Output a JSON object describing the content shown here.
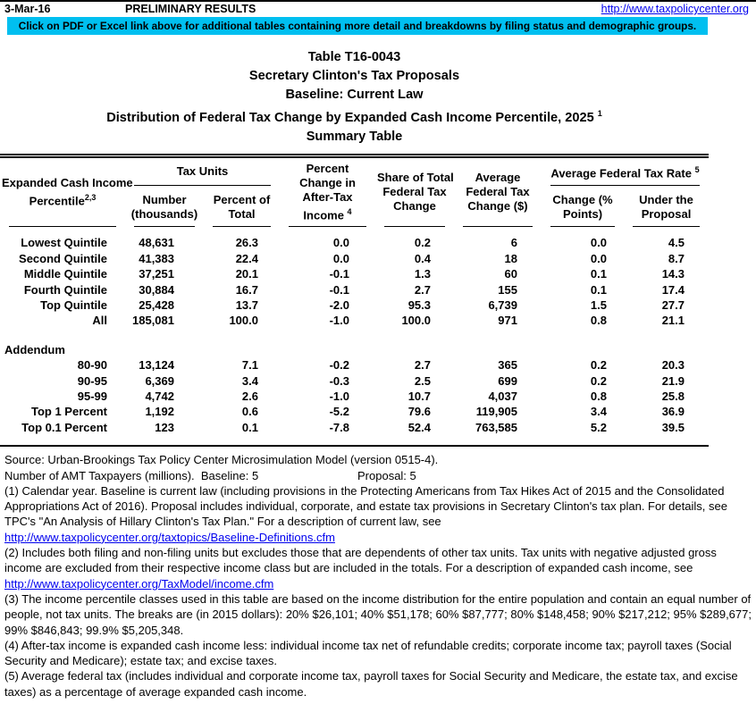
{
  "page": {
    "date": "3-Mar-16",
    "status": "PRELIMINARY RESULTS",
    "site_url": "http://www.taxpolicycenter.org",
    "banner": "Click on PDF or Excel link above for additional tables containing more detail and breakdowns by filing status and demographic groups."
  },
  "title": {
    "line1": "Table T16-0043",
    "line2": "Secretary Clinton's Tax Proposals",
    "line3": "Baseline: Current Law",
    "line4": "Distribution of Federal Tax Change by Expanded Cash Income Percentile, 2025 ",
    "line4_sup": "1",
    "line5": "Summary Table"
  },
  "table": {
    "header": {
      "col1": "Expanded Cash Income\nPercentile",
      "col1_sup": "2,3",
      "group_tax_units": "Tax Units",
      "col2": "Number\n(thousands)",
      "col3": "Percent of\nTotal",
      "col4": "Percent\nChange in\nAfter-Tax\nIncome ",
      "col4_sup": "4",
      "col5": "Share of Total\nFederal Tax\nChange",
      "col6": "Average\nFederal Tax\nChange ($)",
      "group_avg_rate": "Average Federal Tax Rate ",
      "group_avg_rate_sup": "5",
      "col7": "Change (%\nPoints)",
      "col8": "Under the\nProposal"
    },
    "rows": [
      {
        "label": "Lowest Quintile",
        "values": [
          "48,631",
          "26.3",
          "0.0",
          "0.2",
          "6",
          "0.0",
          "4.5"
        ]
      },
      {
        "label": "Second Quintile",
        "values": [
          "41,383",
          "22.4",
          "0.0",
          "0.4",
          "18",
          "0.0",
          "8.7"
        ]
      },
      {
        "label": "Middle Quintile",
        "values": [
          "37,251",
          "20.1",
          "-0.1",
          "1.3",
          "60",
          "0.1",
          "14.3"
        ]
      },
      {
        "label": "Fourth Quintile",
        "values": [
          "30,884",
          "16.7",
          "-0.1",
          "2.7",
          "155",
          "0.1",
          "17.4"
        ]
      },
      {
        "label": "Top Quintile",
        "values": [
          "25,428",
          "13.7",
          "-2.0",
          "95.3",
          "6,739",
          "1.5",
          "27.7"
        ]
      },
      {
        "label": "All",
        "values": [
          "185,081",
          "100.0",
          "-1.0",
          "100.0",
          "971",
          "0.8",
          "21.1"
        ]
      }
    ],
    "addendum_label": "Addendum",
    "addendum_rows": [
      {
        "label": "80-90",
        "values": [
          "13,124",
          "7.1",
          "-0.2",
          "2.7",
          "365",
          "0.2",
          "20.3"
        ]
      },
      {
        "label": "90-95",
        "values": [
          "6,369",
          "3.4",
          "-0.3",
          "2.5",
          "699",
          "0.2",
          "21.9"
        ]
      },
      {
        "label": "95-99",
        "values": [
          "4,742",
          "2.6",
          "-1.0",
          "10.7",
          "4,037",
          "0.8",
          "25.8"
        ]
      },
      {
        "label": "Top 1 Percent",
        "values": [
          "1,192",
          "0.6",
          "-5.2",
          "79.6",
          "119,905",
          "3.4",
          "36.9"
        ]
      },
      {
        "label": "Top 0.1 Percent",
        "values": [
          "123",
          "0.1",
          "-7.8",
          "52.4",
          "763,585",
          "5.2",
          "39.5"
        ]
      }
    ]
  },
  "footnotes": {
    "source": "Source: Urban-Brookings Tax Policy Center Microsimulation Model (version 0515-4).",
    "amt_left": "Number of AMT Taxpayers (millions).  Baseline: 5",
    "amt_right": "Proposal: 5",
    "note1": "(1) Calendar year. Baseline is current law (including provisions in the Protecting Americans from Tax Hikes Act of 2015 and the Consolidated Appropriations Act of 2016). Proposal includes individual, corporate, and estate tax provisions in Secretary Clinton's tax plan. For details, see TPC's \"An Analysis of Hillary Clinton's Tax Plan.\" For a description of current law, see",
    "link1": "http://www.taxpolicycenter.org/taxtopics/Baseline-Definitions.cfm",
    "note2": "(2) Includes both filing and non-filing units but excludes those that are dependents of other tax units. Tax units with negative adjusted gross income are excluded from their respective income class but are included in the totals. For a description of expanded cash income, see",
    "link2": "http://www.taxpolicycenter.org/TaxModel/income.cfm",
    "note3": "(3) The income percentile classes used in this table are based on the income distribution for the entire population and contain an equal number of people, not tax units. The breaks are (in 2015 dollars): 20% $26,101; 40% $51,178; 60% $87,777; 80% $148,458; 90% $217,212; 95% $289,677; 99% $846,843; 99.9% $5,205,348.",
    "note4": "(4) After-tax income is expanded cash income less: individual income tax net of refundable credits; corporate income tax; payroll taxes (Social Security and Medicare); estate tax; and excise taxes.",
    "note5": "(5) Average federal tax (includes individual and corporate income tax, payroll taxes for Social Security and Medicare, the estate tax, and excise taxes) as a percentage of average expanded cash income."
  },
  "colors": {
    "banner_bg": "#00BFF0",
    "link": "#0000EE",
    "text": "#000000"
  }
}
